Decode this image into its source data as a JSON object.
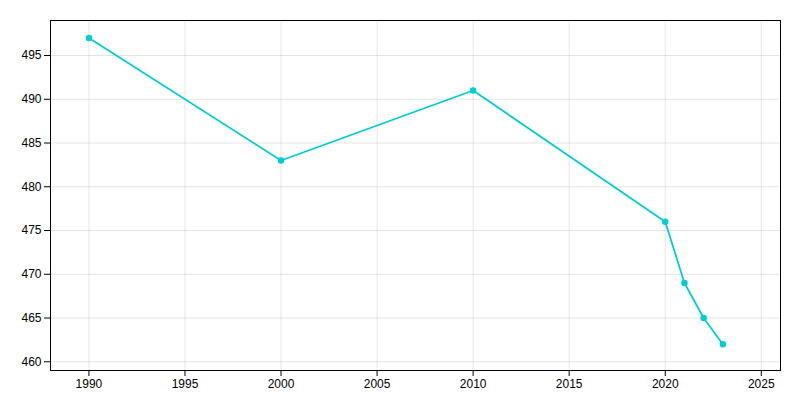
{
  "chart_data": {
    "type": "line",
    "x": [
      1990,
      2000,
      2010,
      2020,
      2021,
      2022,
      2023
    ],
    "values": [
      497,
      483,
      491,
      476,
      469,
      465,
      462
    ],
    "color": "#00CED1",
    "marker": "circle",
    "xlim": [
      1988,
      2026
    ],
    "ylim": [
      459,
      499
    ],
    "xticks": [
      1990,
      1995,
      2000,
      2005,
      2010,
      2015,
      2020,
      2025
    ],
    "yticks": [
      460,
      465,
      470,
      475,
      480,
      485,
      490,
      495
    ],
    "grid": true
  }
}
